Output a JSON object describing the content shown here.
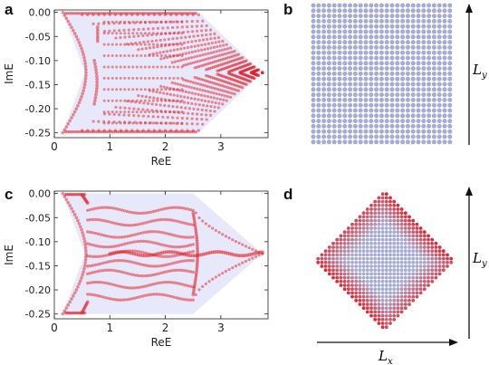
{
  "panels": {
    "a": {
      "letter": "a"
    },
    "b": {
      "letter": "b",
      "ylabel_main": "L",
      "ylabel_sub": "y"
    },
    "c": {
      "letter": "c"
    },
    "d": {
      "letter": "d",
      "xlabel_main": "L",
      "xlabel_sub": "x",
      "ylabel_main": "L",
      "ylabel_sub": "y"
    }
  },
  "colors": {
    "point_red": "#e0222a",
    "shade": "#e8e8fb",
    "lattice_blue": "#a6acd0",
    "axis": "#111111"
  },
  "chart_data": [
    {
      "type": "scatter",
      "panel": "a",
      "xlabel": "ReE",
      "ylabel": "ImE",
      "xlim": [
        0,
        3.85
      ],
      "ylim": [
        -0.26,
        0.005
      ],
      "xticks": [
        0,
        1,
        2,
        3
      ],
      "xtick_labels": [
        "0",
        "1",
        "2",
        "3"
      ],
      "yticks": [
        0.0,
        -0.05,
        -0.1,
        -0.15,
        -0.2,
        -0.25
      ],
      "ytick_labels": [
        "0.00",
        "-0.05",
        "-0.10",
        "-0.15",
        "-0.20",
        "-0.25"
      ],
      "boundary": [
        [
          0.15,
          0.0
        ],
        [
          2.6,
          0.0
        ],
        [
          3.75,
          -0.125
        ],
        [
          2.6,
          -0.25
        ],
        [
          0.15,
          -0.25
        ],
        [
          0.55,
          -0.125
        ]
      ],
      "series": [
        {
          "values": [
            [
              0.15,
              0.0
            ],
            [
              2.55,
              0.0
            ],
            [
              3.75,
              -0.125
            ],
            [
              2.55,
              -0.25
            ],
            [
              0.15,
              -0.25
            ],
            [
              0.55,
              -0.125
            ],
            [
              0.75,
              -0.06
            ],
            [
              0.75,
              -0.18
            ]
          ]
        }
      ]
    },
    {
      "type": "scatter",
      "panel": "c",
      "xlabel": "ReE",
      "ylabel": "ImE",
      "xlim": [
        0,
        3.85
      ],
      "ylim": [
        -0.26,
        0.005
      ],
      "xticks": [
        0,
        1,
        2,
        3
      ],
      "xtick_labels": [
        "0",
        "1",
        "2",
        "3"
      ],
      "yticks": [
        0.0,
        -0.05,
        -0.1,
        -0.15,
        -0.2,
        -0.25
      ],
      "ytick_labels": [
        "0.00",
        "-0.05",
        "-0.10",
        "-0.15",
        "-0.20",
        "-0.25"
      ],
      "boundary": [
        [
          0.15,
          0.0
        ],
        [
          2.5,
          0.0
        ],
        [
          3.75,
          -0.125
        ],
        [
          2.5,
          -0.25
        ],
        [
          0.15,
          -0.25
        ],
        [
          0.55,
          -0.125
        ]
      ],
      "series": [
        {
          "values": [
            [
              0.15,
              0.0
            ],
            [
              2.5,
              -0.04
            ],
            [
              3.75,
              -0.125
            ],
            [
              2.5,
              -0.21
            ],
            [
              0.15,
              -0.25
            ],
            [
              0.6,
              -0.125
            ],
            [
              1.0,
              -0.125
            ],
            [
              2.0,
              -0.125
            ]
          ]
        }
      ]
    }
  ]
}
